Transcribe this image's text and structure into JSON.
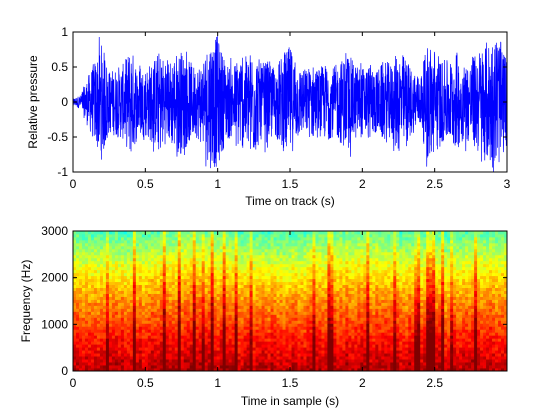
{
  "chart_data": [
    {
      "type": "line",
      "xlabel": "Time on track (s)",
      "ylabel": "Relative pressure",
      "xlim": [
        0,
        3
      ],
      "ylim": [
        -1,
        1
      ],
      "xticks": [
        0,
        0.5,
        1,
        1.5,
        2,
        2.5,
        3
      ],
      "xtick_labels": [
        "0",
        "0.5",
        "1",
        "1.5",
        "2",
        "2.5",
        "3"
      ],
      "yticks": [
        -1,
        -0.5,
        0,
        0.5,
        1
      ],
      "ytick_labels": [
        "-1",
        "-0.5",
        "0",
        "0.5",
        "1"
      ],
      "grid": false,
      "series": [
        {
          "color": "#0000ff",
          "x": [
            0,
            0.05,
            0.1,
            0.15,
            0.2,
            0.25,
            0.3,
            0.35,
            0.4,
            0.45,
            0.5,
            0.55,
            0.6,
            0.65,
            0.7,
            0.75,
            0.8,
            0.85,
            0.9,
            0.95,
            1.0,
            1.05,
            1.1,
            1.15,
            1.2,
            1.25,
            1.3,
            1.35,
            1.4,
            1.45,
            1.5,
            1.55,
            1.6,
            1.65,
            1.7,
            1.75,
            1.8,
            1.85,
            1.9,
            1.95,
            2.0,
            2.05,
            2.1,
            2.15,
            2.2,
            2.25,
            2.3,
            2.35,
            2.4,
            2.45,
            2.5,
            2.55,
            2.6,
            2.65,
            2.7,
            2.75,
            2.8,
            2.85,
            2.9,
            2.95,
            3.0
          ],
          "envelope": [
            0.05,
            0.1,
            0.35,
            0.6,
            0.85,
            0.45,
            0.5,
            0.55,
            0.8,
            0.5,
            0.5,
            0.6,
            0.75,
            0.55,
            0.7,
            0.75,
            0.6,
            0.5,
            0.65,
            0.95,
            0.95,
            0.6,
            0.5,
            0.7,
            0.65,
            0.8,
            0.55,
            0.6,
            0.5,
            0.7,
            0.8,
            0.55,
            0.45,
            0.55,
            0.5,
            0.55,
            0.5,
            0.6,
            0.7,
            0.55,
            0.5,
            0.55,
            0.45,
            0.6,
            0.55,
            0.75,
            0.65,
            0.45,
            0.35,
            0.85,
            0.8,
            0.6,
            0.6,
            0.7,
            0.55,
            0.6,
            0.75,
            0.85,
            0.95,
            0.9,
            0.6
          ]
        }
      ]
    },
    {
      "type": "heatmap",
      "xlabel": "Time in sample (s)",
      "ylabel": "Frequency (Hz)",
      "xlim": [
        0,
        3
      ],
      "ylim": [
        0,
        3000
      ],
      "xticks": [
        0,
        0.5,
        1,
        1.5,
        2,
        2.5
      ],
      "xtick_labels": [
        "0",
        "0.5",
        "1",
        "1.5",
        "2",
        "2.5"
      ],
      "yticks": [
        0,
        1000,
        2000,
        3000
      ],
      "ytick_labels": [
        "0",
        "1000",
        "2000",
        "3000"
      ],
      "grid": false,
      "colormap": [
        "#7f0000",
        "#ff0000",
        "#ff8000",
        "#ffff00",
        "#80ff80",
        "#00ffff"
      ]
    }
  ]
}
